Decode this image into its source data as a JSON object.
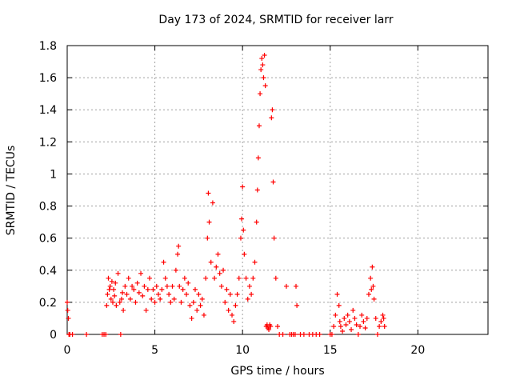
{
  "chart_data": {
    "type": "scatter",
    "title": "Day 173 of 2024, SRMTID for receiver larr",
    "xlabel": "GPS time / hours",
    "ylabel": "SRMTID / TECUs",
    "xlim": [
      0,
      24
    ],
    "ylim": [
      0,
      1.8
    ],
    "xticks": [
      0,
      5,
      10,
      15,
      20
    ],
    "yticks": [
      0,
      0.2,
      0.4,
      0.6,
      0.8,
      1,
      1.2,
      1.4,
      1.6,
      1.8
    ],
    "grid": true,
    "marker": "+",
    "color": "#ff0000",
    "series": [
      {
        "name": "SRMTID",
        "x": [
          0.0,
          0.03,
          0.07,
          0.1,
          0.15,
          0.3,
          1.1,
          2.0,
          2.1,
          2.2,
          2.25,
          2.3,
          2.35,
          2.4,
          2.45,
          2.5,
          2.55,
          2.6,
          2.65,
          2.7,
          2.75,
          2.8,
          2.9,
          3.0,
          3.05,
          3.1,
          3.15,
          3.2,
          3.3,
          3.4,
          3.5,
          3.6,
          3.7,
          3.8,
          3.9,
          4.0,
          4.1,
          4.2,
          4.3,
          4.4,
          4.5,
          4.6,
          4.7,
          4.8,
          4.9,
          5.0,
          5.1,
          5.2,
          5.3,
          5.4,
          5.5,
          5.6,
          5.7,
          5.8,
          5.9,
          6.0,
          6.1,
          6.2,
          6.3,
          6.35,
          6.4,
          6.5,
          6.6,
          6.7,
          6.8,
          6.9,
          7.0,
          7.1,
          7.2,
          7.3,
          7.4,
          7.5,
          7.6,
          7.7,
          7.8,
          7.9,
          8.0,
          8.05,
          8.1,
          8.2,
          8.3,
          8.4,
          8.5,
          8.6,
          8.7,
          8.8,
          8.9,
          9.0,
          9.1,
          9.2,
          9.3,
          9.4,
          9.5,
          9.6,
          9.7,
          9.8,
          9.9,
          9.95,
          10.0,
          10.05,
          10.1,
          10.2,
          10.3,
          10.4,
          10.5,
          10.6,
          10.7,
          10.8,
          10.85,
          10.9,
          10.95,
          11.0,
          11.05,
          11.1,
          11.15,
          11.2,
          11.25,
          11.3,
          11.35,
          11.4,
          11.45,
          11.5,
          11.55,
          11.6,
          11.65,
          11.7,
          11.75,
          11.8,
          11.9,
          12.0,
          12.1,
          12.3,
          12.5,
          12.7,
          12.8,
          12.9,
          13.0,
          13.05,
          13.1,
          13.3,
          13.5,
          13.8,
          14.0,
          14.2,
          14.4,
          15.0,
          15.1,
          15.2,
          15.3,
          15.4,
          15.5,
          15.55,
          15.6,
          15.7,
          15.8,
          15.9,
          16.0,
          16.1,
          16.2,
          16.3,
          16.4,
          16.5,
          16.6,
          16.7,
          16.8,
          16.9,
          17.0,
          17.1,
          17.2,
          17.3,
          17.35,
          17.4,
          17.45,
          17.5,
          17.6,
          17.7,
          17.8,
          17.9,
          18.0,
          18.05,
          18.1
        ],
        "y": [
          0.2,
          0.15,
          0.1,
          0.0,
          0.0,
          0.0,
          0.0,
          0.0,
          0.0,
          0.0,
          0.18,
          0.25,
          0.35,
          0.28,
          0.3,
          0.22,
          0.33,
          0.2,
          0.28,
          0.24,
          0.32,
          0.18,
          0.38,
          0.2,
          0.0,
          0.22,
          0.26,
          0.15,
          0.3,
          0.25,
          0.35,
          0.22,
          0.3,
          0.28,
          0.2,
          0.32,
          0.26,
          0.38,
          0.24,
          0.3,
          0.15,
          0.28,
          0.35,
          0.22,
          0.28,
          0.2,
          0.3,
          0.25,
          0.22,
          0.28,
          0.45,
          0.35,
          0.3,
          0.25,
          0.2,
          0.3,
          0.22,
          0.4,
          0.5,
          0.55,
          0.3,
          0.2,
          0.28,
          0.35,
          0.25,
          0.32,
          0.18,
          0.1,
          0.2,
          0.28,
          0.15,
          0.25,
          0.18,
          0.22,
          0.12,
          0.35,
          0.6,
          0.88,
          0.7,
          0.45,
          0.82,
          0.35,
          0.42,
          0.5,
          0.38,
          0.3,
          0.4,
          0.2,
          0.28,
          0.15,
          0.25,
          0.12,
          0.08,
          0.18,
          0.25,
          0.35,
          0.6,
          0.72,
          0.92,
          0.65,
          0.5,
          0.35,
          0.22,
          0.3,
          0.25,
          0.35,
          0.45,
          0.7,
          0.9,
          1.1,
          1.3,
          1.5,
          1.65,
          1.72,
          1.68,
          1.6,
          1.74,
          1.55,
          0.05,
          0.06,
          0.04,
          0.03,
          0.06,
          0.05,
          1.35,
          1.4,
          0.95,
          0.6,
          0.35,
          0.05,
          0.0,
          0.0,
          0.3,
          0.0,
          0.0,
          0.0,
          0.0,
          0.3,
          0.18,
          0.0,
          0.0,
          0.0,
          0.0,
          0.0,
          0.0,
          0.0,
          0.0,
          0.05,
          0.12,
          0.25,
          0.18,
          0.08,
          0.05,
          0.02,
          0.1,
          0.06,
          0.12,
          0.08,
          0.03,
          0.15,
          0.1,
          0.06,
          0.0,
          0.05,
          0.12,
          0.08,
          0.04,
          0.1,
          0.25,
          0.35,
          0.28,
          0.42,
          0.3,
          0.22,
          0.1,
          0.0,
          0.05,
          0.08,
          0.12,
          0.1,
          0.05
        ]
      }
    ]
  }
}
